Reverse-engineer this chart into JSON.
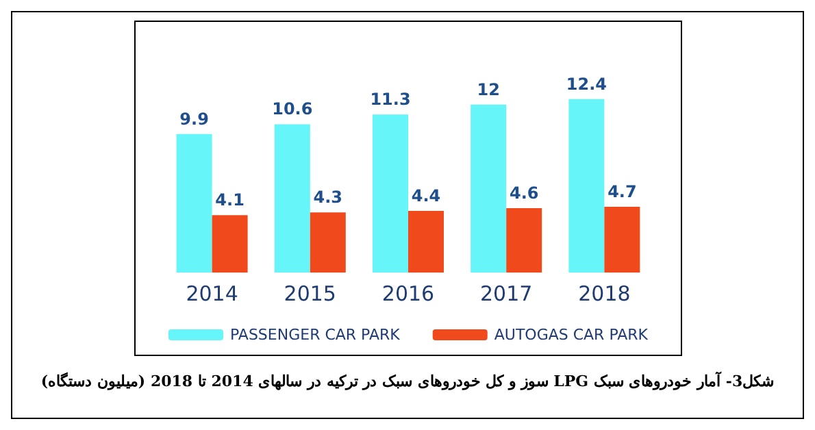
{
  "chart_data": {
    "type": "bar",
    "categories": [
      "2014",
      "2015",
      "2016",
      "2017",
      "2018"
    ],
    "series": [
      {
        "name": "PASSENGER CAR PARK",
        "color": "#66f6fa",
        "values": [
          9.9,
          10.6,
          11.3,
          12,
          12.4
        ]
      },
      {
        "name": "AUTOGAS CAR PARK",
        "color": "#f04a1c",
        "values": [
          4.1,
          4.3,
          4.4,
          4.6,
          4.7
        ]
      }
    ],
    "data_labels": true,
    "legend": "bottom",
    "grid": false,
    "annotations": [
      "شکل3- آمار خودروهای سبک LPG سوز و کل خودروهای سبک در ترکیه در سالهای 2014 تا 2018 (میلیون دستگاه)"
    ]
  }
}
